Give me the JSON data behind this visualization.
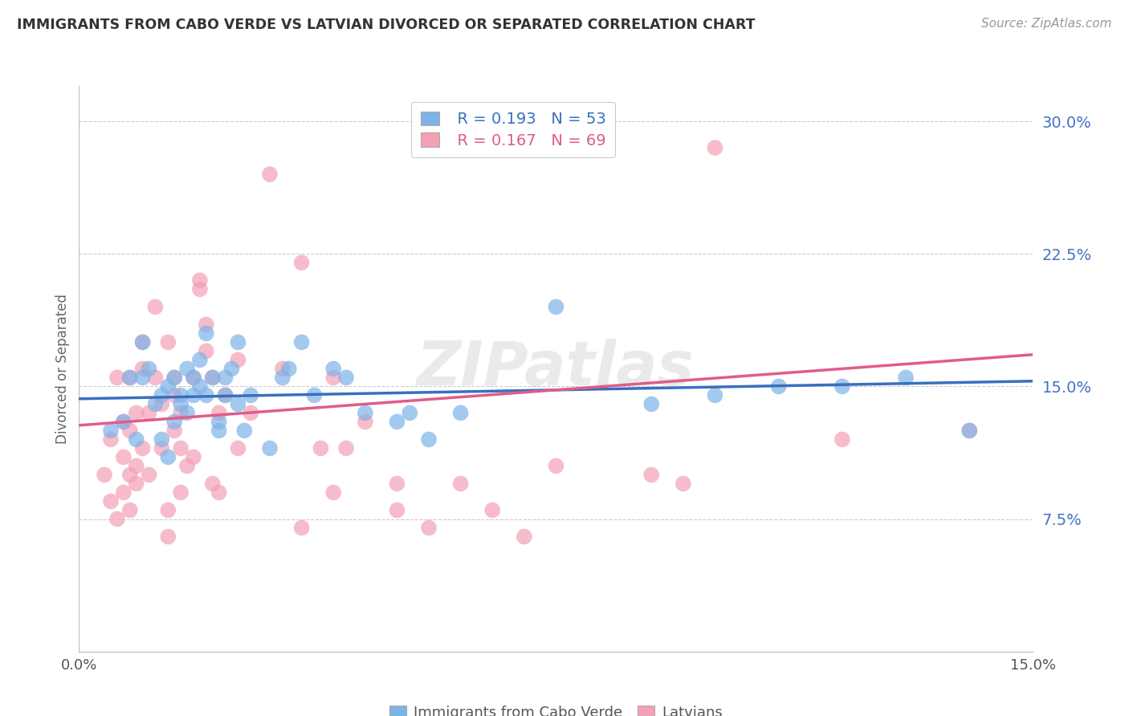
{
  "title": "IMMIGRANTS FROM CABO VERDE VS LATVIAN DIVORCED OR SEPARATED CORRELATION CHART",
  "source": "Source: ZipAtlas.com",
  "ylabel": "Divorced or Separated",
  "ytick_labels": [
    "7.5%",
    "15.0%",
    "22.5%",
    "30.0%"
  ],
  "ytick_values": [
    0.075,
    0.15,
    0.225,
    0.3
  ],
  "xlim": [
    0.0,
    0.15
  ],
  "ylim": [
    0.0,
    0.32
  ],
  "legend_R_blue": "R = 0.193",
  "legend_N_blue": "N = 53",
  "legend_R_pink": "R = 0.167",
  "legend_N_pink": "N = 69",
  "legend_label_blue": "Immigrants from Cabo Verde",
  "legend_label_pink": "Latvians",
  "blue_color": "#7EB3E8",
  "pink_color": "#F4A0B5",
  "blue_line_color": "#3A6FBF",
  "pink_line_color": "#E05C8A",
  "blue_scatter": [
    [
      0.005,
      0.125
    ],
    [
      0.007,
      0.13
    ],
    [
      0.008,
      0.155
    ],
    [
      0.009,
      0.12
    ],
    [
      0.01,
      0.175
    ],
    [
      0.01,
      0.155
    ],
    [
      0.011,
      0.16
    ],
    [
      0.012,
      0.14
    ],
    [
      0.013,
      0.145
    ],
    [
      0.013,
      0.12
    ],
    [
      0.014,
      0.11
    ],
    [
      0.014,
      0.15
    ],
    [
      0.015,
      0.13
    ],
    [
      0.015,
      0.155
    ],
    [
      0.016,
      0.145
    ],
    [
      0.016,
      0.14
    ],
    [
      0.017,
      0.135
    ],
    [
      0.017,
      0.16
    ],
    [
      0.018,
      0.155
    ],
    [
      0.018,
      0.145
    ],
    [
      0.019,
      0.15
    ],
    [
      0.019,
      0.165
    ],
    [
      0.02,
      0.18
    ],
    [
      0.02,
      0.145
    ],
    [
      0.021,
      0.155
    ],
    [
      0.022,
      0.125
    ],
    [
      0.022,
      0.13
    ],
    [
      0.023,
      0.145
    ],
    [
      0.023,
      0.155
    ],
    [
      0.024,
      0.16
    ],
    [
      0.025,
      0.175
    ],
    [
      0.025,
      0.14
    ],
    [
      0.026,
      0.125
    ],
    [
      0.027,
      0.145
    ],
    [
      0.03,
      0.115
    ],
    [
      0.032,
      0.155
    ],
    [
      0.033,
      0.16
    ],
    [
      0.035,
      0.175
    ],
    [
      0.037,
      0.145
    ],
    [
      0.04,
      0.16
    ],
    [
      0.042,
      0.155
    ],
    [
      0.045,
      0.135
    ],
    [
      0.05,
      0.13
    ],
    [
      0.052,
      0.135
    ],
    [
      0.055,
      0.12
    ],
    [
      0.06,
      0.135
    ],
    [
      0.075,
      0.195
    ],
    [
      0.09,
      0.14
    ],
    [
      0.1,
      0.145
    ],
    [
      0.11,
      0.15
    ],
    [
      0.12,
      0.15
    ],
    [
      0.13,
      0.155
    ],
    [
      0.14,
      0.125
    ]
  ],
  "pink_scatter": [
    [
      0.004,
      0.1
    ],
    [
      0.005,
      0.12
    ],
    [
      0.005,
      0.085
    ],
    [
      0.006,
      0.075
    ],
    [
      0.006,
      0.155
    ],
    [
      0.007,
      0.09
    ],
    [
      0.007,
      0.11
    ],
    [
      0.007,
      0.13
    ],
    [
      0.008,
      0.1
    ],
    [
      0.008,
      0.125
    ],
    [
      0.008,
      0.155
    ],
    [
      0.008,
      0.08
    ],
    [
      0.009,
      0.105
    ],
    [
      0.009,
      0.135
    ],
    [
      0.009,
      0.095
    ],
    [
      0.01,
      0.115
    ],
    [
      0.01,
      0.175
    ],
    [
      0.01,
      0.16
    ],
    [
      0.011,
      0.135
    ],
    [
      0.011,
      0.1
    ],
    [
      0.012,
      0.195
    ],
    [
      0.012,
      0.155
    ],
    [
      0.013,
      0.14
    ],
    [
      0.013,
      0.115
    ],
    [
      0.014,
      0.175
    ],
    [
      0.014,
      0.08
    ],
    [
      0.014,
      0.065
    ],
    [
      0.015,
      0.155
    ],
    [
      0.015,
      0.145
    ],
    [
      0.015,
      0.125
    ],
    [
      0.016,
      0.135
    ],
    [
      0.016,
      0.09
    ],
    [
      0.016,
      0.115
    ],
    [
      0.017,
      0.105
    ],
    [
      0.018,
      0.155
    ],
    [
      0.018,
      0.11
    ],
    [
      0.019,
      0.21
    ],
    [
      0.019,
      0.205
    ],
    [
      0.02,
      0.185
    ],
    [
      0.02,
      0.17
    ],
    [
      0.021,
      0.155
    ],
    [
      0.021,
      0.095
    ],
    [
      0.022,
      0.135
    ],
    [
      0.022,
      0.09
    ],
    [
      0.023,
      0.145
    ],
    [
      0.025,
      0.165
    ],
    [
      0.025,
      0.115
    ],
    [
      0.027,
      0.135
    ],
    [
      0.03,
      0.27
    ],
    [
      0.032,
      0.16
    ],
    [
      0.035,
      0.22
    ],
    [
      0.035,
      0.07
    ],
    [
      0.038,
      0.115
    ],
    [
      0.04,
      0.155
    ],
    [
      0.04,
      0.09
    ],
    [
      0.042,
      0.115
    ],
    [
      0.045,
      0.13
    ],
    [
      0.05,
      0.095
    ],
    [
      0.05,
      0.08
    ],
    [
      0.055,
      0.07
    ],
    [
      0.06,
      0.095
    ],
    [
      0.065,
      0.08
    ],
    [
      0.07,
      0.065
    ],
    [
      0.075,
      0.105
    ],
    [
      0.09,
      0.1
    ],
    [
      0.095,
      0.095
    ],
    [
      0.1,
      0.285
    ],
    [
      0.12,
      0.12
    ],
    [
      0.14,
      0.125
    ]
  ],
  "blue_line_x": [
    0.0,
    0.15
  ],
  "blue_line_y": [
    0.143,
    0.153
  ],
  "pink_line_x": [
    0.0,
    0.15
  ],
  "pink_line_y": [
    0.128,
    0.168
  ],
  "watermark": "ZIPatlas",
  "grid_color": "#CCCCCC",
  "background_color": "#FFFFFF",
  "title_color": "#333333",
  "source_color": "#999999",
  "ylabel_color": "#666666",
  "right_tick_color": "#4472C4",
  "legend_border_color": "#CCCCCC"
}
